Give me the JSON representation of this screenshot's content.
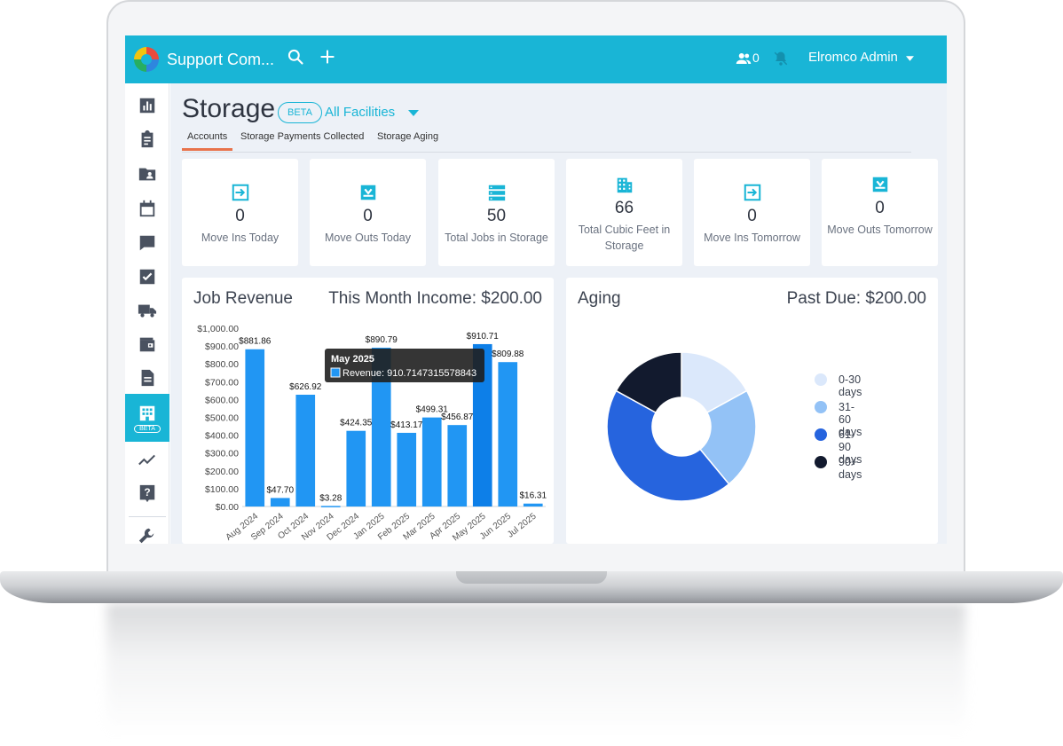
{
  "header": {
    "app_title": "Support Com...",
    "users_count": "0",
    "user_name": "Elromco Admin"
  },
  "page": {
    "title": "Storage",
    "beta_badge": "BETA",
    "facility_filter": "All Facilities",
    "tabs": [
      {
        "label": "Accounts",
        "active": true
      },
      {
        "label": "Storage Payments Collected",
        "active": false
      },
      {
        "label": "Storage Aging",
        "active": false
      }
    ]
  },
  "sidebar": {
    "items": [
      {
        "icon": "bar-chart-icon"
      },
      {
        "icon": "clipboard-icon"
      },
      {
        "icon": "contacts-folder-icon"
      },
      {
        "icon": "calendar-icon"
      },
      {
        "icon": "chat-icon"
      },
      {
        "icon": "checkbox-icon"
      },
      {
        "icon": "truck-icon"
      },
      {
        "icon": "wallet-icon"
      },
      {
        "icon": "document-icon"
      },
      {
        "icon": "storage-building-icon",
        "badge": "BETA",
        "active": true
      },
      {
        "icon": "trend-line-icon"
      },
      {
        "icon": "help-icon"
      },
      {
        "icon": "wrench-icon"
      }
    ]
  },
  "stats": [
    {
      "icon": "move-in-icon",
      "value": "0",
      "label": "Move Ins Today"
    },
    {
      "icon": "move-out-icon",
      "value": "0",
      "label": "Move Outs Today"
    },
    {
      "icon": "storage-list-icon",
      "value": "50",
      "label": "Total Jobs in Storage"
    },
    {
      "icon": "building-icon",
      "value": "66",
      "label": "Total Cubic Feet in Storage"
    },
    {
      "icon": "move-in-icon",
      "value": "0",
      "label": "Move Ins Tomorrow"
    },
    {
      "icon": "move-out-icon",
      "value": "0",
      "label": "Move Outs Tomorrow"
    }
  ],
  "revenue_panel": {
    "title": "Job Revenue",
    "income_text": "This Month Income: $200.00",
    "tooltip": {
      "title": "May 2025",
      "text": "Revenue: 910.7147315578843"
    }
  },
  "aging_panel": {
    "title": "Aging",
    "past_due_text": "Past Due: $200.00"
  },
  "colors": {
    "accent": "#19b5d6",
    "bar": "#2196f3",
    "bar_hover": "#0d7fe8",
    "tab_underline": "#e8724a"
  },
  "chart_data": [
    {
      "type": "bar",
      "title": "Job Revenue",
      "categories": [
        "Aug 2024",
        "Sep 2024",
        "Oct 2024",
        "Nov 2024",
        "Dec 2024",
        "Jan 2025",
        "Feb 2025",
        "Mar 2025",
        "Apr 2025",
        "May 2025",
        "Jun 2025",
        "Jul 2025"
      ],
      "series": [
        {
          "name": "Revenue",
          "values": [
            881.86,
            47.7,
            626.92,
            3.28,
            424.35,
            890.79,
            413.17,
            499.31,
            456.87,
            910.71,
            809.88,
            16.31
          ]
        }
      ],
      "data_labels": [
        "$881.86",
        "$47.70",
        "$626.92",
        "$3.28",
        "$424.35",
        "$890.79",
        "$413.17",
        "$499.31",
        "$456.87",
        "$910.71",
        "$809.88",
        "$16.31"
      ],
      "y_ticks": [
        "$0.00",
        "$100.00",
        "$200.00",
        "$300.00",
        "$400.00",
        "$500.00",
        "$600.00",
        "$700.00",
        "$800.00",
        "$900.00",
        "$1,000.00"
      ],
      "ylim": [
        0,
        1000
      ],
      "highlighted_category": "May 2025"
    },
    {
      "type": "pie",
      "title": "Aging",
      "categories": [
        "0-30 days",
        "31-60 days",
        "61-90 days",
        "90+ days"
      ],
      "values": [
        0.17,
        0.22,
        0.44,
        0.17
      ],
      "colors": [
        "#dbe8fb",
        "#93c2f6",
        "#2664de",
        "#121a2e"
      ],
      "donut": true,
      "legend": "right"
    }
  ]
}
